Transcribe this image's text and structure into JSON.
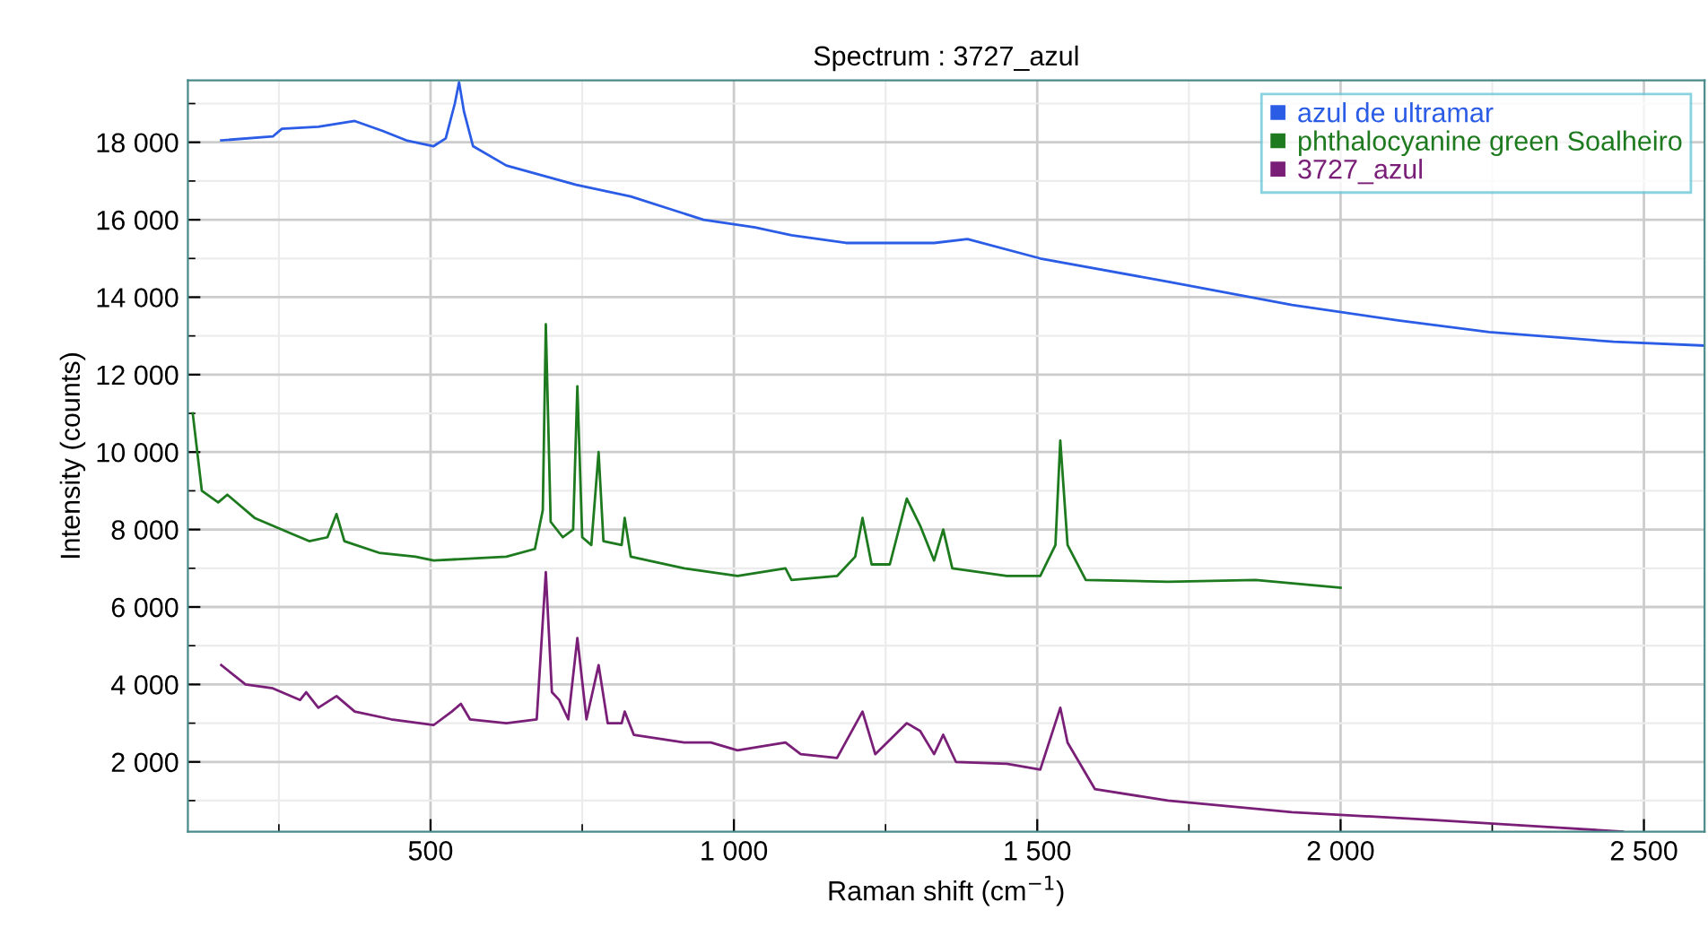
{
  "chart_data": {
    "type": "line",
    "title": "Spectrum : 3727_azul",
    "xlabel": "Raman shift (cm$^{−1}$)",
    "ylabel": "Intensity (counts)",
    "xlim": [
      100,
      2600
    ],
    "ylim": [
      200,
      19600
    ],
    "xticks": [
      500,
      {
        "value": 1000,
        "label": "1 000"
      },
      {
        "value": 1500,
        "label": "1 500"
      },
      {
        "value": 2000,
        "label": "2 000"
      },
      {
        "value": 2500,
        "label": "2 500"
      }
    ],
    "yticks": [
      {
        "value": 2000,
        "label": "2 000"
      },
      {
        "value": 4000,
        "label": "4 000"
      },
      {
        "value": 6000,
        "label": "6 000"
      },
      {
        "value": 8000,
        "label": "8 000"
      },
      {
        "value": 10000,
        "label": "10 000"
      },
      {
        "value": 12000,
        "label": "12 000"
      },
      {
        "value": 14000,
        "label": "14 000"
      },
      {
        "value": 16000,
        "label": "16 000"
      },
      {
        "value": 18000,
        "label": "18 000"
      }
    ],
    "grid": true,
    "legend": "top right",
    "marker": "none",
    "line_style": "solid",
    "series": [
      {
        "name": "azul de ultramar",
        "color": "#2b5ce6",
        "x": [
          155,
          240,
          255,
          315,
          375,
          420,
          460,
          505,
          525,
          540,
          547,
          555,
          570,
          625,
          740,
          830,
          950,
          1035,
          1095,
          1185,
          1330,
          1385,
          1505,
          1715,
          1920,
          2095,
          2245,
          2450,
          2600
        ],
        "values": [
          18050,
          18150,
          18350,
          18400,
          18550,
          18300,
          18050,
          17900,
          18100,
          19000,
          19550,
          18800,
          17900,
          17400,
          16900,
          16600,
          16000,
          15800,
          15600,
          15400,
          15400,
          15500,
          15000,
          14400,
          13800,
          13400,
          13100,
          12850,
          12750
        ]
      },
      {
        "name": "phthalocyanine green Soalheiro",
        "color": "#1e7a1e",
        "x": [
          108,
          123,
          150,
          165,
          210,
          270,
          300,
          330,
          345,
          358,
          415,
          475,
          505,
          625,
          672,
          685,
          690,
          698,
          718,
          735,
          742,
          750,
          765,
          777,
          785,
          815,
          820,
          830,
          918,
          1006,
          1085,
          1095,
          1170,
          1200,
          1212,
          1227,
          1257,
          1285,
          1307,
          1330,
          1345,
          1360,
          1450,
          1505,
          1530,
          1538,
          1550,
          1580,
          1715,
          1860,
          2000
        ],
        "values": [
          11000,
          9000,
          8700,
          8900,
          8300,
          7900,
          7700,
          7800,
          8400,
          7700,
          7400,
          7300,
          7200,
          7300,
          7500,
          8500,
          13300,
          8200,
          7800,
          8000,
          11700,
          7800,
          7600,
          10000,
          7700,
          7600,
          8300,
          7300,
          7000,
          6800,
          7000,
          6700,
          6800,
          7300,
          8300,
          7100,
          7100,
          8800,
          8100,
          7200,
          8000,
          7000,
          6800,
          6800,
          7600,
          10300,
          7600,
          6700,
          6650,
          6700,
          6500
        ]
      },
      {
        "name": "3727_azul",
        "color": "#7a1f78",
        "x": [
          155,
          195,
          240,
          285,
          295,
          315,
          345,
          375,
          435,
          505,
          535,
          550,
          565,
          625,
          675,
          690,
          700,
          712,
          727,
          742,
          757,
          777,
          792,
          815,
          820,
          835,
          918,
          962,
          1006,
          1085,
          1110,
          1170,
          1212,
          1233,
          1285,
          1307,
          1330,
          1345,
          1366,
          1450,
          1505,
          1538,
          1550,
          1595,
          1715,
          1920,
          2155,
          2360,
          2465
        ],
        "values": [
          4500,
          4000,
          3900,
          3600,
          3800,
          3400,
          3700,
          3300,
          3100,
          2950,
          3300,
          3500,
          3100,
          3000,
          3100,
          6900,
          3800,
          3600,
          3100,
          5200,
          3100,
          4500,
          3000,
          3000,
          3300,
          2700,
          2500,
          2500,
          2300,
          2500,
          2200,
          2100,
          3300,
          2200,
          3000,
          2800,
          2200,
          2700,
          2000,
          1950,
          1800,
          3400,
          2500,
          1300,
          1000,
          700,
          500,
          300,
          200
        ]
      }
    ]
  }
}
